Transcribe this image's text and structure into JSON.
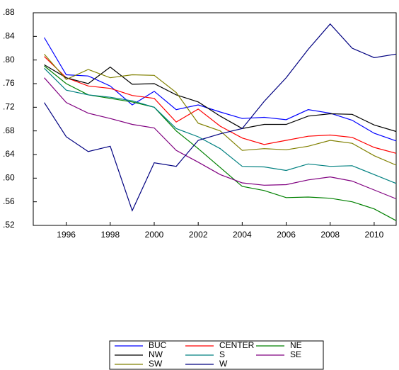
{
  "chart_data": {
    "type": "line",
    "x": [
      1995,
      1996,
      1997,
      1998,
      1999,
      2000,
      2001,
      2002,
      2003,
      2004,
      2005,
      2006,
      2007,
      2008,
      2009,
      2010,
      2011
    ],
    "xlim": [
      1994.5,
      2011
    ],
    "xticks": [
      1996,
      1998,
      2000,
      2002,
      2004,
      2006,
      2008,
      2010
    ],
    "ylim": [
      0.52,
      0.88
    ],
    "yticks": [
      {
        "value": 0.52,
        "label": ".52"
      },
      {
        "value": 0.56,
        "label": ".56"
      },
      {
        "value": 0.6,
        "label": ".60"
      },
      {
        "value": 0.64,
        "label": ".64"
      },
      {
        "value": 0.68,
        "label": ".68"
      },
      {
        "value": 0.72,
        "label": ".72"
      },
      {
        "value": 0.76,
        "label": ".76"
      },
      {
        "value": 0.8,
        "label": ".80"
      },
      {
        "value": 0.84,
        "label": ".84"
      },
      {
        "value": 0.88,
        "label": ".88"
      }
    ],
    "series": [
      {
        "name": "BUC",
        "color": "#0000ff",
        "values": [
          0.838,
          0.775,
          0.773,
          0.756,
          0.724,
          0.747,
          0.716,
          0.724,
          0.712,
          0.701,
          0.703,
          0.699,
          0.716,
          0.71,
          0.698,
          0.676,
          0.663
        ]
      },
      {
        "name": "CENTER",
        "color": "#ff0000",
        "values": [
          0.806,
          0.77,
          0.756,
          0.752,
          0.74,
          0.735,
          0.695,
          0.717,
          0.688,
          0.668,
          0.657,
          0.664,
          0.671,
          0.673,
          0.669,
          0.652,
          0.642
        ]
      },
      {
        "name": "NE",
        "color": "#008000",
        "values": [
          0.79,
          0.76,
          0.741,
          0.735,
          0.729,
          0.72,
          0.68,
          0.65,
          0.618,
          0.586,
          0.579,
          0.567,
          0.568,
          0.566,
          0.56,
          0.548,
          0.528
        ]
      },
      {
        "name": "NW",
        "color": "#000000",
        "values": [
          0.792,
          0.77,
          0.76,
          0.788,
          0.759,
          0.76,
          0.741,
          0.729,
          0.705,
          0.684,
          0.691,
          0.691,
          0.705,
          0.709,
          0.708,
          0.69,
          0.679
        ]
      },
      {
        "name": "S",
        "color": "#008080",
        "values": [
          0.786,
          0.749,
          0.741,
          0.737,
          0.731,
          0.72,
          0.684,
          0.67,
          0.65,
          0.62,
          0.619,
          0.613,
          0.624,
          0.62,
          0.621,
          0.606,
          0.591
        ]
      },
      {
        "name": "SE",
        "color": "#800080",
        "values": [
          0.77,
          0.728,
          0.71,
          0.701,
          0.691,
          0.685,
          0.647,
          0.627,
          0.606,
          0.592,
          0.588,
          0.589,
          0.597,
          0.602,
          0.595,
          0.58,
          0.565
        ]
      },
      {
        "name": "SW",
        "color": "#808000",
        "values": [
          0.81,
          0.767,
          0.784,
          0.77,
          0.775,
          0.774,
          0.745,
          0.693,
          0.68,
          0.647,
          0.65,
          0.648,
          0.654,
          0.664,
          0.659,
          0.638,
          0.622
        ]
      },
      {
        "name": "W",
        "color": "#000080",
        "values": [
          0.728,
          0.67,
          0.645,
          0.654,
          0.545,
          0.626,
          0.62,
          0.664,
          0.675,
          0.684,
          0.73,
          0.77,
          0.818,
          0.861,
          0.82,
          0.804,
          0.81
        ]
      }
    ]
  }
}
